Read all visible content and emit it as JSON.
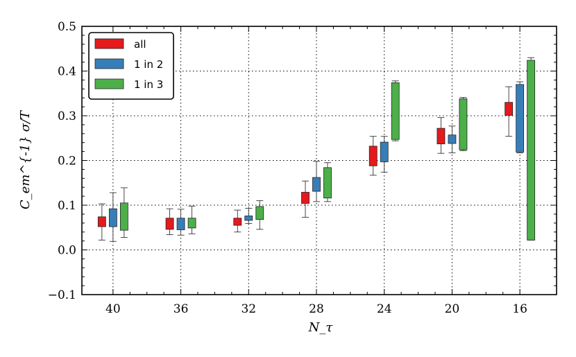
{
  "chart_data": {
    "type": "box",
    "xlabel": "N_τ",
    "ylabel": "C_em^{-1} σ/T",
    "ylim": [
      -0.1,
      0.5
    ],
    "yticks": [
      "−0.1",
      "0.0",
      "0.1",
      "0.2",
      "0.3",
      "0.4",
      "0.5"
    ],
    "categories": [
      "40",
      "36",
      "32",
      "28",
      "24",
      "20",
      "16"
    ],
    "grid": true,
    "legend_position": "top-left",
    "series": [
      {
        "name": "all",
        "color": "#e41a1c",
        "boxes": [
          {
            "whisker_low": 0.022,
            "q1": 0.052,
            "q3": 0.074,
            "whisker_high": 0.103
          },
          {
            "whisker_low": 0.034,
            "q1": 0.046,
            "q3": 0.071,
            "whisker_high": 0.092
          },
          {
            "whisker_low": 0.04,
            "q1": 0.055,
            "q3": 0.071,
            "whisker_high": 0.089
          },
          {
            "whisker_low": 0.073,
            "q1": 0.104,
            "q3": 0.129,
            "whisker_high": 0.154
          },
          {
            "whisker_low": 0.167,
            "q1": 0.188,
            "q3": 0.232,
            "whisker_high": 0.254
          },
          {
            "whisker_low": 0.216,
            "q1": 0.237,
            "q3": 0.272,
            "whisker_high": 0.296
          },
          {
            "whisker_low": 0.254,
            "q1": 0.301,
            "q3": 0.33,
            "whisker_high": 0.365
          }
        ]
      },
      {
        "name": "1 in 2",
        "color": "#377eb8",
        "boxes": [
          {
            "whisker_low": 0.019,
            "q1": 0.052,
            "q3": 0.092,
            "whisker_high": 0.128
          },
          {
            "whisker_low": 0.033,
            "q1": 0.045,
            "q3": 0.071,
            "whisker_high": 0.091
          },
          {
            "whisker_low": 0.059,
            "q1": 0.066,
            "q3": 0.076,
            "whisker_high": 0.093
          },
          {
            "whisker_low": 0.108,
            "q1": 0.131,
            "q3": 0.162,
            "whisker_high": 0.198
          },
          {
            "whisker_low": 0.174,
            "q1": 0.197,
            "q3": 0.241,
            "whisker_high": 0.254
          },
          {
            "whisker_low": 0.217,
            "q1": 0.238,
            "q3": 0.257,
            "whisker_high": 0.277
          },
          {
            "whisker_low": 0.217,
            "q1": 0.219,
            "q3": 0.37,
            "whisker_high": 0.376
          }
        ]
      },
      {
        "name": "1 in 3",
        "color": "#4daf4a",
        "boxes": [
          {
            "whisker_low": 0.028,
            "q1": 0.044,
            "q3": 0.105,
            "whisker_high": 0.139
          },
          {
            "whisker_low": 0.036,
            "q1": 0.049,
            "q3": 0.071,
            "whisker_high": 0.098
          },
          {
            "whisker_low": 0.046,
            "q1": 0.068,
            "q3": 0.097,
            "whisker_high": 0.11
          },
          {
            "whisker_low": 0.108,
            "q1": 0.116,
            "q3": 0.184,
            "whisker_high": 0.195
          },
          {
            "whisker_low": 0.244,
            "q1": 0.247,
            "q3": 0.374,
            "whisker_high": 0.378
          },
          {
            "whisker_low": 0.222,
            "q1": 0.224,
            "q3": 0.338,
            "whisker_high": 0.341
          },
          {
            "whisker_low": 0.022,
            "q1": 0.022,
            "q3": 0.424,
            "whisker_high": 0.43
          }
        ]
      }
    ]
  }
}
